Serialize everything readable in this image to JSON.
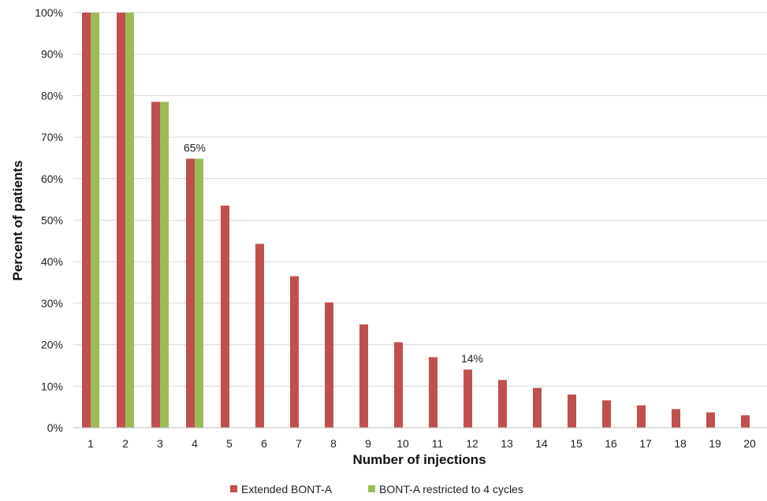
{
  "chart_data": {
    "type": "bar",
    "title": "",
    "xlabel": "Number of injections",
    "ylabel": "Percent of patients",
    "categories": [
      "1",
      "2",
      "3",
      "4",
      "5",
      "6",
      "7",
      "8",
      "9",
      "10",
      "11",
      "12",
      "13",
      "14",
      "15",
      "16",
      "17",
      "18",
      "19",
      "20"
    ],
    "series": [
      {
        "name": "Extended BONT-A",
        "color": "#c0504d",
        "values": [
          100,
          100,
          78.5,
          64.8,
          53.5,
          44.3,
          36.5,
          30.2,
          24.9,
          20.6,
          17.0,
          14.0,
          11.5,
          9.6,
          8.0,
          6.6,
          5.4,
          4.5,
          3.7,
          3.0
        ]
      },
      {
        "name": "BONT-A restricted to 4 cycles",
        "color": "#9bbb59",
        "values": [
          100,
          100,
          78.5,
          64.8,
          null,
          null,
          null,
          null,
          null,
          null,
          null,
          null,
          null,
          null,
          null,
          null,
          null,
          null,
          null,
          null
        ]
      }
    ],
    "ylim": [
      0,
      100
    ],
    "yticks": [
      0,
      10,
      20,
      30,
      40,
      50,
      60,
      70,
      80,
      90,
      100
    ],
    "ytick_labels": [
      "0%",
      "10%",
      "20%",
      "30%",
      "40%",
      "50%",
      "60%",
      "70%",
      "80%",
      "90%",
      "100%"
    ],
    "grid": true,
    "legend": "bottom",
    "annotations": [
      {
        "category": "4",
        "text": "65%",
        "value": 64.8
      },
      {
        "category": "12",
        "text": "14%",
        "value": 14.0
      }
    ]
  }
}
